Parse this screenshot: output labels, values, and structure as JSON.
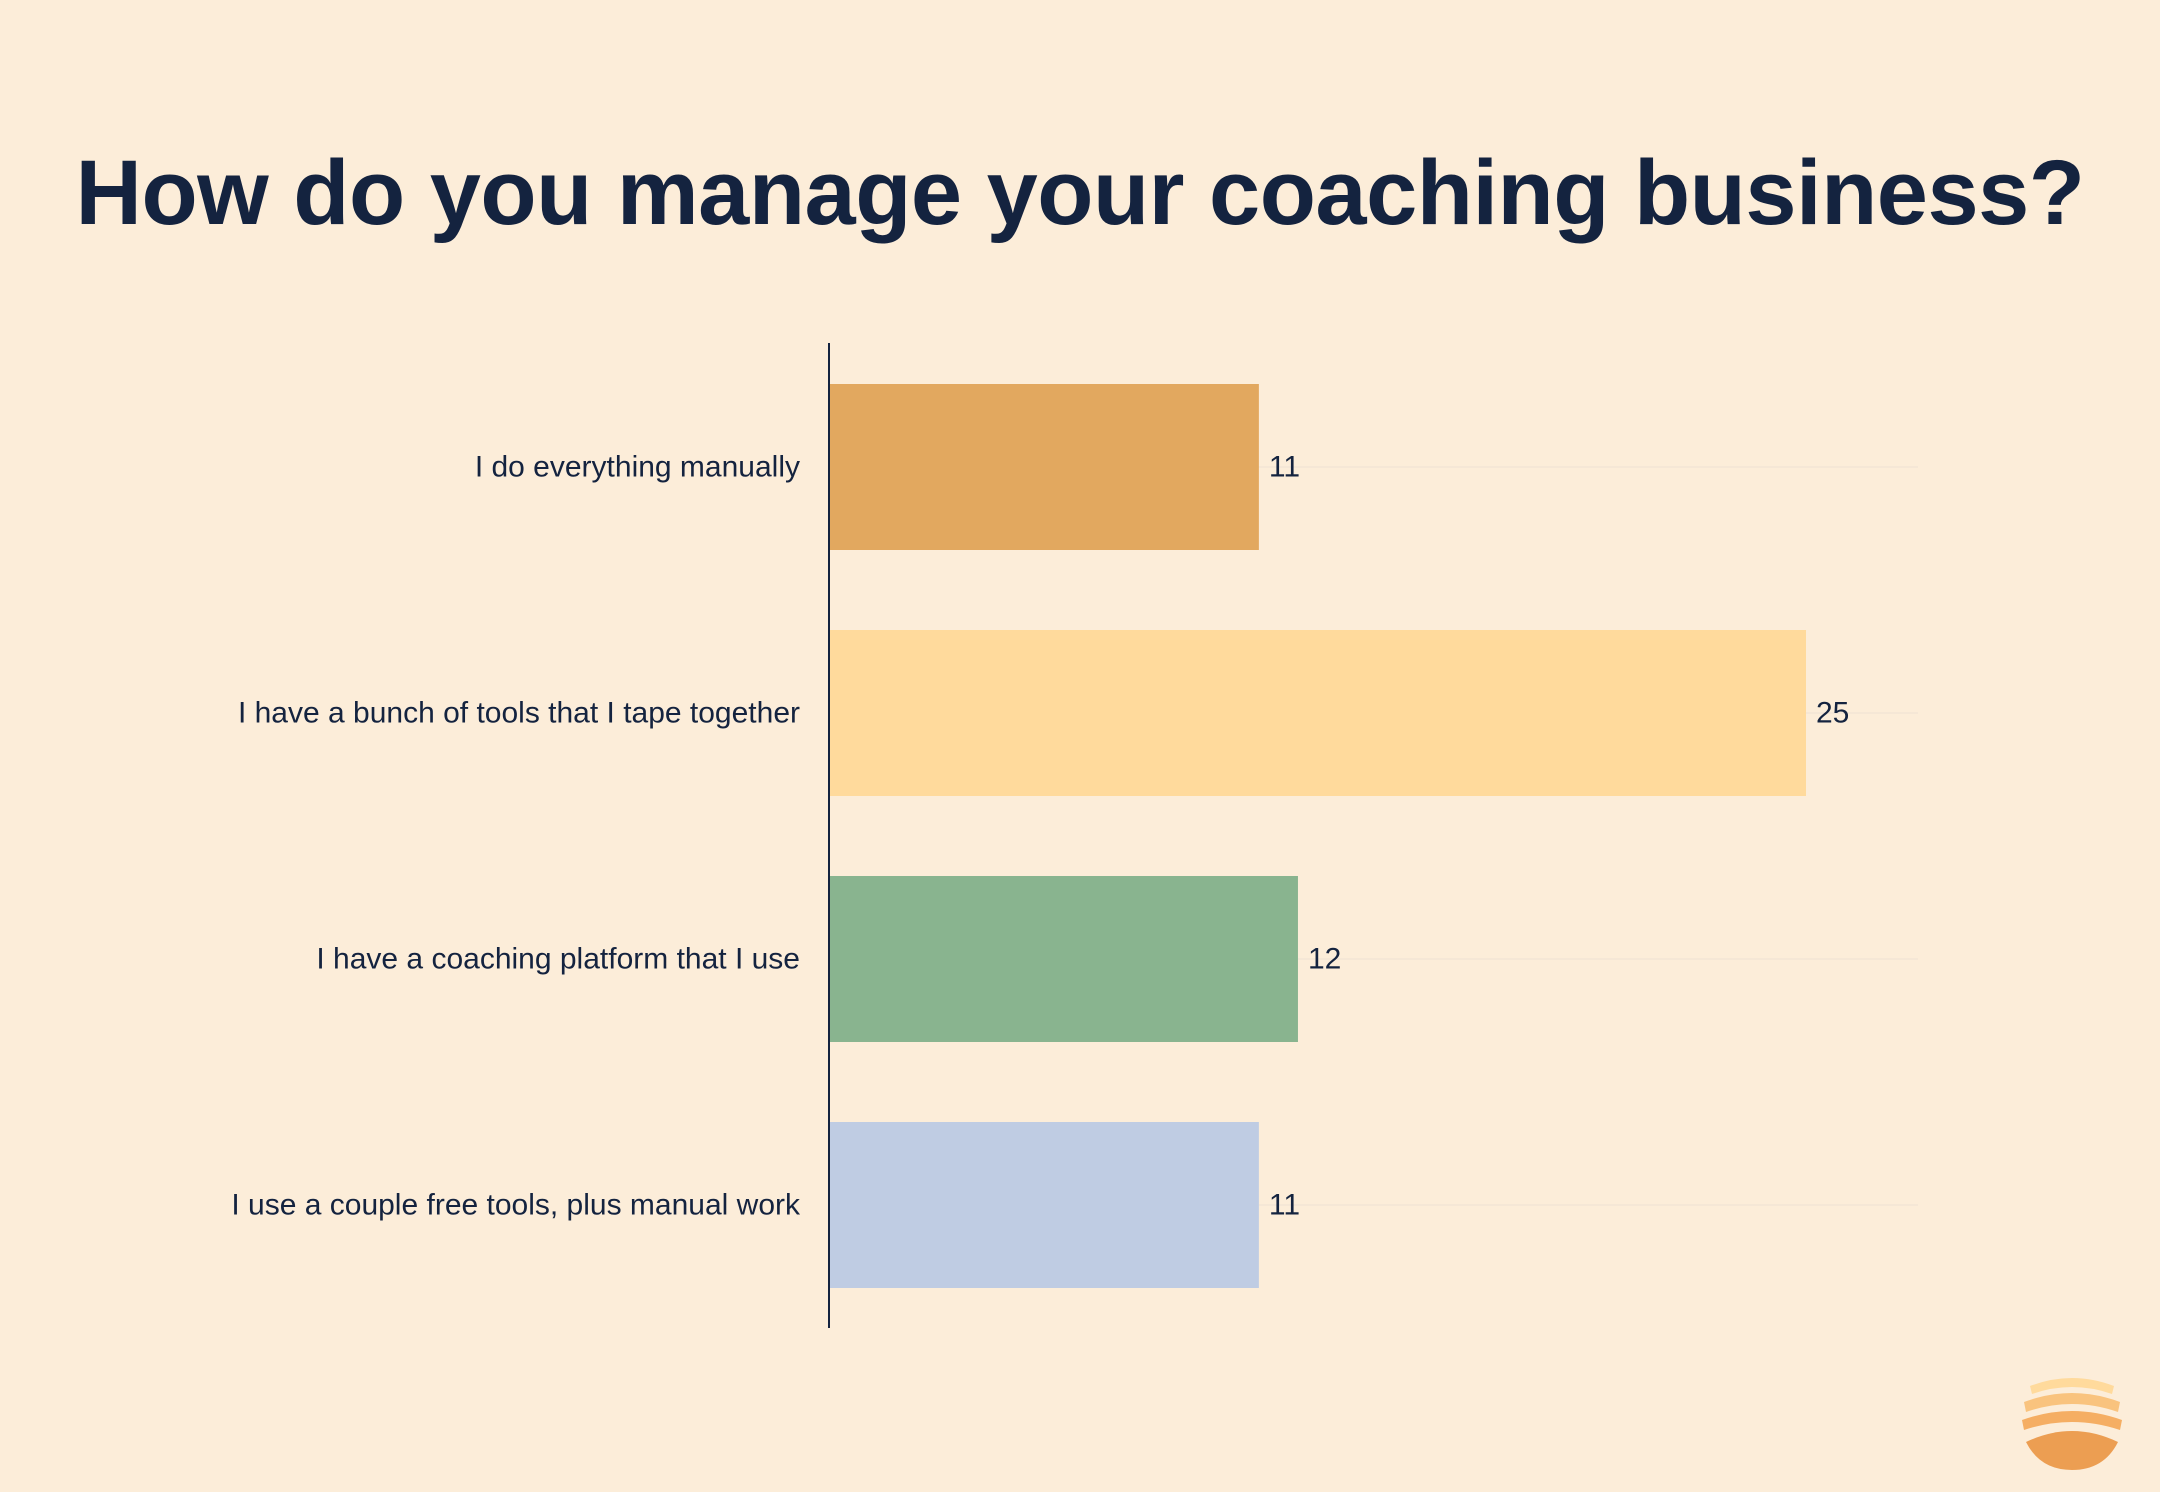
{
  "colors": {
    "background": "#FCEDD9",
    "text": "#14233F",
    "axis": "#14233F",
    "gridline": "#F5E7D6",
    "bars": [
      "#E2A85F",
      "#FFDA9C",
      "#89B48F",
      "#BFCCE3"
    ],
    "logo": [
      "#FFDA9C",
      "#F9C37E",
      "#F5AE63",
      "#EC9E52"
    ]
  },
  "logo": {
    "icon": "sun-waves-logo-icon"
  },
  "chart_data": {
    "type": "bar",
    "orientation": "horizontal",
    "title": "How do you manage your coaching business?",
    "categories": [
      "I do everything manually",
      "I have a bunch of tools that I tape together",
      "I have a coaching platform that I use",
      "I use a couple free tools, plus manual work"
    ],
    "values": [
      11,
      25,
      12,
      11
    ],
    "xlim": [
      0,
      28
    ],
    "data_labels": true,
    "grid": false,
    "legend": "none"
  }
}
